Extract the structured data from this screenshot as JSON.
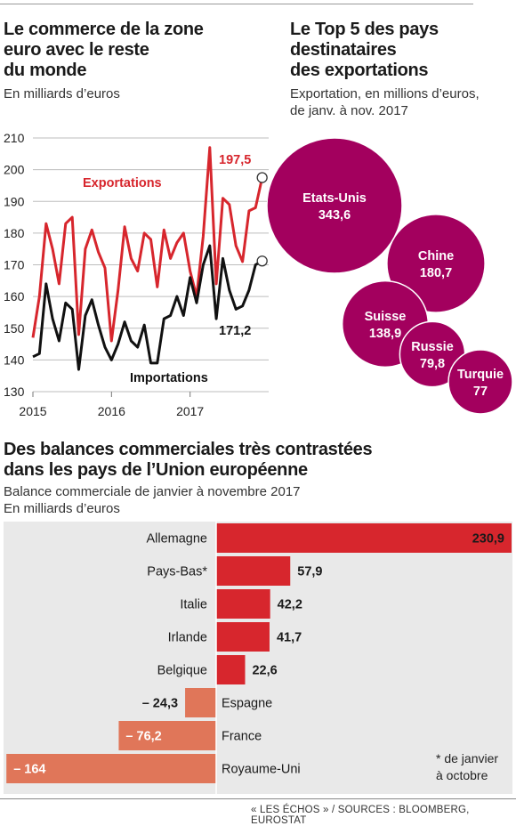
{
  "trade_chart": {
    "title": "Le commerce de la zone euro avec le reste du monde",
    "title_lines": [
      "Le commerce de la zone",
      "euro avec le reste",
      "du monde"
    ],
    "subtitle": "En milliards d’euros",
    "export_label": "Exportations",
    "import_label": "Importations",
    "export_last_label": "197,5",
    "import_last_label": "171,2"
  },
  "bubble_chart": {
    "title": "Le Top 5 des pays destinataires des exportations",
    "title_lines": [
      "Le Top 5 des pays",
      "destinataires",
      "des exportations"
    ],
    "subtitle_lines": [
      "Exportation, en millions d’euros,",
      "de janv. à nov. 2017"
    ]
  },
  "bar_chart": {
    "title": "Des balances commerciales très contrastées dans les pays de l’Union européenne",
    "title_lines": [
      "Des balances commerciales très contrastées",
      "dans les pays de l’Union européenne"
    ],
    "subtitle_lines": [
      "Balance commerciale de janvier à novembre 2017",
      "En milliards d’euros"
    ],
    "footnote_lines": [
      "* de janvier",
      "à octobre"
    ]
  },
  "footer": "« LES ÉCHOS » / SOURCES : BLOOMBERG, EUROSTAT",
  "colors": {
    "export": "#d7262d",
    "import": "#111111",
    "bubble": "#a3005e",
    "bar_positive": "#d7262d",
    "bar_negative": "#e07659",
    "panel_bg": "#e9e9e9"
  },
  "chart_data": [
    {
      "type": "line",
      "title": "Le commerce de la zone euro avec le reste du monde",
      "ylabel": "En milliards d’euros",
      "ylim": [
        130,
        210
      ],
      "yticks": [
        "130",
        "140",
        "150",
        "160",
        "170",
        "180",
        "190",
        "200",
        "210"
      ],
      "xticks": [
        "2015",
        "2016",
        "2017"
      ],
      "xtick_values": [
        2015.0,
        2016.0,
        2017.0
      ],
      "xlim": [
        2015.0,
        2018.0
      ],
      "grid": true,
      "series": [
        {
          "name": "Exportations",
          "color": "#d7262d",
          "x": [
            2015.0,
            2015.083,
            2015.167,
            2015.25,
            2015.333,
            2015.417,
            2015.5,
            2015.583,
            2015.667,
            2015.75,
            2015.833,
            2015.917,
            2016.0,
            2016.083,
            2016.167,
            2016.25,
            2016.333,
            2016.417,
            2016.5,
            2016.583,
            2016.667,
            2016.75,
            2016.833,
            2016.917,
            2017.0,
            2017.083,
            2017.167,
            2017.25,
            2017.333,
            2017.417,
            2017.5,
            2017.583,
            2017.667,
            2017.75,
            2017.833
          ],
          "values": [
            147,
            160,
            183,
            175,
            164,
            183,
            185,
            148,
            175,
            181,
            174,
            169,
            146,
            162,
            182,
            172,
            168,
            180,
            178,
            163,
            181,
            172,
            177,
            180,
            168,
            160,
            179,
            207,
            164,
            191,
            189,
            176,
            171,
            187,
            188
          ]
        },
        {
          "name": "Importations",
          "color": "#111111",
          "x": [
            2015.0,
            2015.083,
            2015.167,
            2015.25,
            2015.333,
            2015.417,
            2015.5,
            2015.583,
            2015.667,
            2015.75,
            2015.833,
            2015.917,
            2016.0,
            2016.083,
            2016.167,
            2016.25,
            2016.333,
            2016.417,
            2016.5,
            2016.583,
            2016.667,
            2016.75,
            2016.833,
            2016.917,
            2017.0,
            2017.083,
            2017.167,
            2017.25,
            2017.333,
            2017.417,
            2017.5,
            2017.583,
            2017.667,
            2017.75,
            2017.833,
            2017.917
          ],
          "values": [
            141,
            142,
            164,
            153,
            146,
            158,
            156,
            137,
            154,
            159,
            151,
            144,
            140,
            145,
            152,
            146,
            144,
            151,
            139,
            139,
            153,
            154,
            160,
            154,
            166,
            158,
            170,
            176,
            153,
            172,
            162,
            156,
            157,
            162,
            170,
            171.2
          ]
        }
      ],
      "annotations": [
        {
          "series": "Exportations",
          "x": 2017.917,
          "value": 197.5,
          "label": "197,5"
        },
        {
          "series": "Importations",
          "x": 2017.917,
          "value": 171.2,
          "label": "171,2"
        }
      ]
    },
    {
      "type": "bubble",
      "title": "Le Top 5 des pays destinataires des exportations",
      "ylabel": "Exportation, en millions d’euros, de janv. à nov. 2017",
      "points": [
        {
          "label": "Etats-Unis",
          "value": 343.6,
          "value_label": "343,6"
        },
        {
          "label": "Chine",
          "value": 180.7,
          "value_label": "180,7"
        },
        {
          "label": "Suisse",
          "value": 138.9,
          "value_label": "138,9"
        },
        {
          "label": "Russie",
          "value": 79.8,
          "value_label": "79,8"
        },
        {
          "label": "Turquie",
          "value": 77,
          "value_label": "77"
        }
      ]
    },
    {
      "type": "bar",
      "orientation": "horizontal",
      "title": "Des balances commerciales très contrastées dans les pays de l’Union européenne",
      "ylabel": "Balance commerciale de janvier à novembre 2017",
      "xlabel": "En milliards d’euros",
      "categories": [
        "Allemagne",
        "Pays-Bas*",
        "Italie",
        "Irlande",
        "Belgique",
        "Espagne",
        "France",
        "Royaume-Uni"
      ],
      "values": [
        230.9,
        57.9,
        42.2,
        41.7,
        22.6,
        -24.3,
        -76.2,
        -164
      ],
      "value_labels": [
        "230,9",
        "57,9",
        "42,2",
        "41,7",
        "22,6",
        "– 24,3",
        "– 76,2",
        "– 164"
      ]
    }
  ]
}
